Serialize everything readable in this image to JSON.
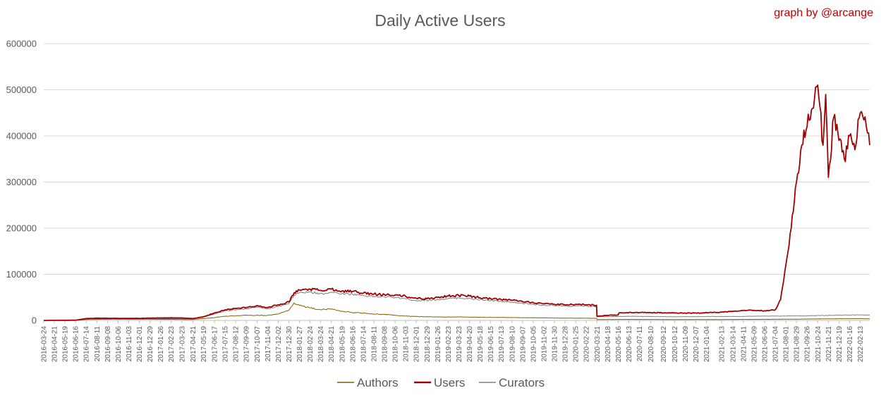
{
  "chart_data": {
    "type": "line",
    "title": "Daily Active Users",
    "credit": "graph by @arcange",
    "ylim": [
      0,
      600000
    ],
    "yticks": [
      "0",
      "100000",
      "200000",
      "300000",
      "400000",
      "500000",
      "600000"
    ],
    "xtick_labels": [
      "2016-03-24",
      "2016-04-21",
      "2016-05-19",
      "2016-06-16",
      "2016-07-14",
      "2016-08-11",
      "2016-09-08",
      "2016-10-06",
      "2016-11-03",
      "2016-12-01",
      "2016-12-29",
      "2017-01-26",
      "2017-02-23",
      "2017-03-23",
      "2017-04-21",
      "2017-05-19",
      "2017-06-17",
      "2017-07-15",
      "2017-08-12",
      "2017-09-09",
      "2017-10-07",
      "2017-11-04",
      "2017-12-02",
      "2017-12-30",
      "2018-01-27",
      "2018-02-24",
      "2018-03-24",
      "2018-04-21",
      "2018-05-19",
      "2018-06-16",
      "2018-07-14",
      "2018-08-11",
      "2018-09-08",
      "2018-10-06",
      "2018-11-03",
      "2018-12-01",
      "2018-12-29",
      "2019-01-26",
      "2019-02-23",
      "2019-03-23",
      "2019-04-20",
      "2019-05-18",
      "2019-06-15",
      "2019-07-13",
      "2019-08-10",
      "2019-09-07",
      "2019-10-05",
      "2019-11-02",
      "2019-11-30",
      "2019-12-28",
      "2020-01-25",
      "2020-02-22",
      "2020-03-21",
      "2020-04-18",
      "2020-05-16",
      "2020-06-13",
      "2020-07-11",
      "2020-08-10",
      "2020-09-12",
      "2020-10-12",
      "2020-11-09",
      "2020-12-07",
      "2021-01-04",
      "2021-02-13",
      "2021-03-14",
      "2021-04-11",
      "2021-05-09",
      "2021-06-06",
      "2021-07-04",
      "2021-08-01",
      "2021-08-29",
      "2021-09-26",
      "2021-10-24",
      "2021-11-21",
      "2021-12-19",
      "2022-01-16",
      "2022-02-13"
    ],
    "legend": [
      "Authors",
      "Users",
      "Curators"
    ],
    "legend_position": "bottom",
    "grid": true,
    "colors": {
      "Authors": "#7f6000",
      "Users": "#a00000",
      "Curators": "#7f7f7f"
    },
    "series": [
      {
        "name": "Authors",
        "points": [
          [
            "2016-03-24",
            0
          ],
          [
            "2016-06-16",
            200
          ],
          [
            "2016-07-14",
            2000
          ],
          [
            "2016-09-08",
            2500
          ],
          [
            "2016-12-29",
            2500
          ],
          [
            "2017-04-21",
            2000
          ],
          [
            "2017-05-19",
            4000
          ],
          [
            "2017-06-17",
            6000
          ],
          [
            "2017-07-15",
            9000
          ],
          [
            "2017-09-09",
            11000
          ],
          [
            "2017-11-04",
            11000
          ],
          [
            "2017-12-02",
            14000
          ],
          [
            "2017-12-30",
            22000
          ],
          [
            "2018-01-13",
            38000
          ],
          [
            "2018-01-27",
            33000
          ],
          [
            "2018-02-24",
            27000
          ],
          [
            "2018-03-24",
            23000
          ],
          [
            "2018-04-21",
            25000
          ],
          [
            "2018-05-19",
            20000
          ],
          [
            "2018-06-16",
            17000
          ],
          [
            "2018-07-14",
            16000
          ],
          [
            "2018-08-11",
            14000
          ],
          [
            "2018-09-08",
            13000
          ],
          [
            "2018-10-06",
            11000
          ],
          [
            "2018-11-03",
            9500
          ],
          [
            "2018-12-01",
            8500
          ],
          [
            "2019-01-26",
            7500
          ],
          [
            "2019-03-23",
            7500
          ],
          [
            "2019-05-18",
            6800
          ],
          [
            "2019-07-13",
            6500
          ],
          [
            "2019-09-07",
            6000
          ],
          [
            "2019-11-02",
            5500
          ],
          [
            "2019-12-28",
            5000
          ],
          [
            "2020-02-22",
            4800
          ],
          [
            "2020-03-20",
            4500
          ],
          [
            "2020-03-21",
            2000
          ],
          [
            "2020-06-13",
            2200
          ],
          [
            "2020-10-12",
            2000
          ],
          [
            "2021-02-13",
            2000
          ],
          [
            "2021-05-09",
            2300
          ],
          [
            "2021-07-04",
            2500
          ],
          [
            "2021-09-26",
            3000
          ],
          [
            "2021-11-21",
            3500
          ],
          [
            "2022-02-13",
            3800
          ],
          [
            "2022-03-10",
            3500
          ]
        ]
      },
      {
        "name": "Users",
        "points": [
          [
            "2016-03-24",
            0
          ],
          [
            "2016-06-16",
            500
          ],
          [
            "2016-07-14",
            4000
          ],
          [
            "2016-08-11",
            5000
          ],
          [
            "2016-10-06",
            4500
          ],
          [
            "2016-12-01",
            4500
          ],
          [
            "2017-01-26",
            5500
          ],
          [
            "2017-03-23",
            5500
          ],
          [
            "2017-04-21",
            4000
          ],
          [
            "2017-05-19",
            8000
          ],
          [
            "2017-06-17",
            16000
          ],
          [
            "2017-07-15",
            23000
          ],
          [
            "2017-08-12",
            26000
          ],
          [
            "2017-09-09",
            28000
          ],
          [
            "2017-10-07",
            32000
          ],
          [
            "2017-11-04",
            28000
          ],
          [
            "2017-12-02",
            34000
          ],
          [
            "2017-12-30",
            40000
          ],
          [
            "2018-01-13",
            60000
          ],
          [
            "2018-01-27",
            66000
          ],
          [
            "2018-02-24",
            68000
          ],
          [
            "2018-03-24",
            65000
          ],
          [
            "2018-04-21",
            68000
          ],
          [
            "2018-05-19",
            64000
          ],
          [
            "2018-06-16",
            63000
          ],
          [
            "2018-07-14",
            59000
          ],
          [
            "2018-08-11",
            57000
          ],
          [
            "2018-09-08",
            56000
          ],
          [
            "2018-10-06",
            55000
          ],
          [
            "2018-11-03",
            52000
          ],
          [
            "2018-12-01",
            48000
          ],
          [
            "2018-12-29",
            47000
          ],
          [
            "2019-01-26",
            50000
          ],
          [
            "2019-02-23",
            53000
          ],
          [
            "2019-03-23",
            54000
          ],
          [
            "2019-04-20",
            53000
          ],
          [
            "2019-05-18",
            49000
          ],
          [
            "2019-06-15",
            47000
          ],
          [
            "2019-07-13",
            45000
          ],
          [
            "2019-08-10",
            44000
          ],
          [
            "2019-09-07",
            41000
          ],
          [
            "2019-10-05",
            39000
          ],
          [
            "2019-11-02",
            36000
          ],
          [
            "2019-11-30",
            35000
          ],
          [
            "2019-12-28",
            34000
          ],
          [
            "2020-01-25",
            35000
          ],
          [
            "2020-02-22",
            34000
          ],
          [
            "2020-03-20",
            33000
          ],
          [
            "2020-03-21",
            9000
          ],
          [
            "2020-04-18",
            11000
          ],
          [
            "2020-05-16",
            12000
          ],
          [
            "2020-05-18",
            16000
          ],
          [
            "2020-06-13",
            17000
          ],
          [
            "2020-08-10",
            17000
          ],
          [
            "2020-10-12",
            16000
          ],
          [
            "2020-12-07",
            16000
          ],
          [
            "2021-02-13",
            18000
          ],
          [
            "2021-03-14",
            20000
          ],
          [
            "2021-04-11",
            22000
          ],
          [
            "2021-05-09",
            22000
          ],
          [
            "2021-06-06",
            21000
          ],
          [
            "2021-07-04",
            23000
          ],
          [
            "2021-07-18",
            45000
          ],
          [
            "2021-08-01",
            120000
          ],
          [
            "2021-08-15",
            200000
          ],
          [
            "2021-08-29",
            300000
          ],
          [
            "2021-09-12",
            380000
          ],
          [
            "2021-09-26",
            420000
          ],
          [
            "2021-10-10",
            460000
          ],
          [
            "2021-10-24",
            510000
          ],
          [
            "2021-11-07",
            380000
          ],
          [
            "2021-11-14",
            490000
          ],
          [
            "2021-11-21",
            310000
          ],
          [
            "2021-12-05",
            440000
          ],
          [
            "2021-12-19",
            390000
          ],
          [
            "2022-01-02",
            350000
          ],
          [
            "2022-01-16",
            400000
          ],
          [
            "2022-01-30",
            370000
          ],
          [
            "2022-02-13",
            450000
          ],
          [
            "2022-03-01",
            420000
          ],
          [
            "2022-03-10",
            380000
          ]
        ]
      },
      {
        "name": "Curators",
        "points": [
          [
            "2016-03-24",
            0
          ],
          [
            "2016-06-16",
            400
          ],
          [
            "2016-07-14",
            3500
          ],
          [
            "2016-09-08",
            4000
          ],
          [
            "2016-12-29",
            4000
          ],
          [
            "2017-04-21",
            3500
          ],
          [
            "2017-05-19",
            7000
          ],
          [
            "2017-06-17",
            14000
          ],
          [
            "2017-07-15",
            21000
          ],
          [
            "2017-09-09",
            25000
          ],
          [
            "2017-10-07",
            29000
          ],
          [
            "2017-11-04",
            25000
          ],
          [
            "2017-12-02",
            30000
          ],
          [
            "2017-12-30",
            36000
          ],
          [
            "2018-01-13",
            55000
          ],
          [
            "2018-01-27",
            60000
          ],
          [
            "2018-02-24",
            61000
          ],
          [
            "2018-03-24",
            58000
          ],
          [
            "2018-04-21",
            61000
          ],
          [
            "2018-05-19",
            58000
          ],
          [
            "2018-06-16",
            57000
          ],
          [
            "2018-07-14",
            54000
          ],
          [
            "2018-08-11",
            52000
          ],
          [
            "2018-09-08",
            51000
          ],
          [
            "2018-10-06",
            50000
          ],
          [
            "2018-11-03",
            47000
          ],
          [
            "2018-12-01",
            43000
          ],
          [
            "2019-01-26",
            45000
          ],
          [
            "2019-03-23",
            49000
          ],
          [
            "2019-05-18",
            45000
          ],
          [
            "2019-07-13",
            41000
          ],
          [
            "2019-09-07",
            37000
          ],
          [
            "2019-11-02",
            33000
          ],
          [
            "2019-12-28",
            31000
          ],
          [
            "2020-02-22",
            31000
          ],
          [
            "2020-03-20",
            30000
          ],
          [
            "2020-03-21",
            8000
          ],
          [
            "2020-06-13",
            9000
          ],
          [
            "2020-10-12",
            8000
          ],
          [
            "2021-02-13",
            8500
          ],
          [
            "2021-05-09",
            9000
          ],
          [
            "2021-07-04",
            9500
          ],
          [
            "2021-09-26",
            10000
          ],
          [
            "2021-11-21",
            11000
          ],
          [
            "2022-02-13",
            12000
          ],
          [
            "2022-03-10",
            11500
          ]
        ]
      }
    ]
  }
}
